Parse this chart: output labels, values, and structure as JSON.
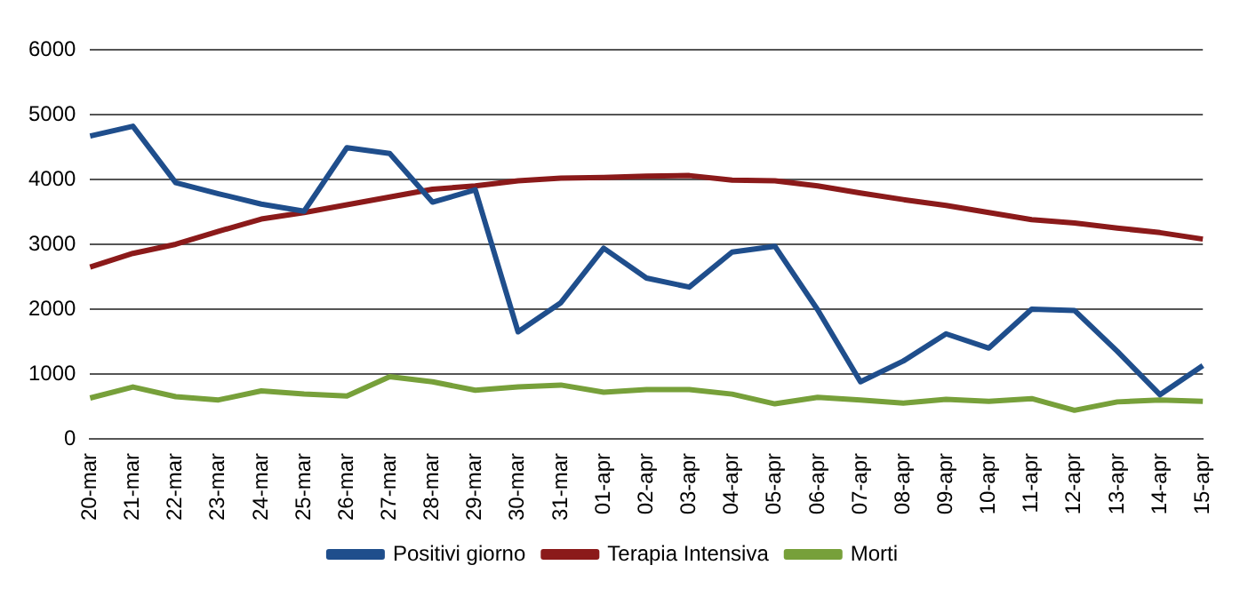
{
  "chart_data": {
    "type": "line",
    "categories": [
      "20-mar",
      "21-mar",
      "22-mar",
      "23-mar",
      "24-mar",
      "25-mar",
      "26-mar",
      "27-mar",
      "28-mar",
      "29-mar",
      "30-mar",
      "31-mar",
      "01-apr",
      "02-apr",
      "03-apr",
      "04-apr",
      "05-apr",
      "06-apr",
      "07-apr",
      "08-apr",
      "09-apr",
      "10-apr",
      "11-apr",
      "12-apr",
      "13-apr",
      "14-apr",
      "15-apr"
    ],
    "series": [
      {
        "name": "Positivi giorno",
        "color": "#1f4e8c",
        "values": [
          4670,
          4820,
          3950,
          3780,
          3620,
          3510,
          4490,
          4400,
          3650,
          3840,
          1650,
          2100,
          2940,
          2480,
          2340,
          2880,
          2970,
          1990,
          880,
          1200,
          1620,
          1400,
          2000,
          1980,
          1350,
          680,
          1130
        ]
      },
      {
        "name": "Terapia Intensiva",
        "color": "#8b1a1a",
        "values": [
          2650,
          2860,
          3000,
          3200,
          3390,
          3490,
          3610,
          3730,
          3850,
          3900,
          3980,
          4020,
          4030,
          4050,
          4060,
          3990,
          3980,
          3900,
          3790,
          3690,
          3600,
          3490,
          3380,
          3330,
          3250,
          3180,
          3080
        ]
      },
      {
        "name": "Morti",
        "color": "#77a03a",
        "values": [
          630,
          800,
          650,
          600,
          740,
          690,
          660,
          960,
          880,
          750,
          800,
          830,
          720,
          760,
          760,
          690,
          540,
          640,
          600,
          550,
          610,
          580,
          620,
          440,
          570,
          600,
          580
        ]
      }
    ],
    "ylim": [
      0,
      6000
    ],
    "yticks": [
      0,
      1000,
      2000,
      3000,
      4000,
      5000,
      6000
    ],
    "grid": "y",
    "legend": "bottom",
    "marker": "none",
    "line_style": "solid"
  }
}
